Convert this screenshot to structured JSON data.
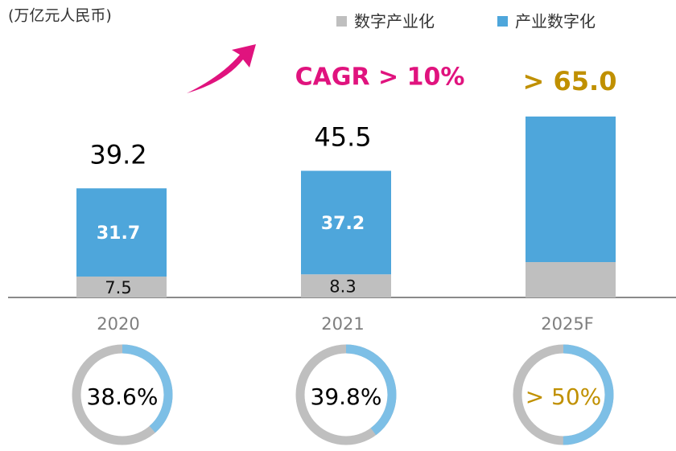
{
  "chart_data": {
    "type": "stacked_bar",
    "unit_label": "(万亿元人民币)",
    "annotation": "CAGR > 10%",
    "categories": [
      "2020",
      "2021",
      "2025F"
    ],
    "series": [
      {
        "name": "数字产业化",
        "color": "#bfbfbf",
        "values": [
          7.5,
          8.3,
          12.7
        ],
        "value_labels": [
          "7.5",
          "8.3",
          null
        ]
      },
      {
        "name": "产业数字化",
        "color": "#4ea6db",
        "values": [
          31.7,
          37.2,
          52.3
        ],
        "value_labels": [
          "31.7",
          "37.2",
          null
        ]
      }
    ],
    "totals": [
      39.2,
      45.5,
      65.0
    ],
    "total_labels": [
      "39.2",
      "45.5",
      "> 65.0"
    ],
    "total_label_colors": [
      "#000000",
      "#000000",
      "#c09000"
    ],
    "ylim": [
      0,
      80
    ],
    "donut": {
      "values": [
        38.6,
        39.8,
        50
      ],
      "labels": [
        "38.6%",
        "39.8%",
        "> 50%"
      ],
      "label_colors": [
        "#000000",
        "#000000",
        "#c09000"
      ],
      "color": "#7dbfe6",
      "rest_color": "#bfbfbf",
      "max": 100
    }
  }
}
